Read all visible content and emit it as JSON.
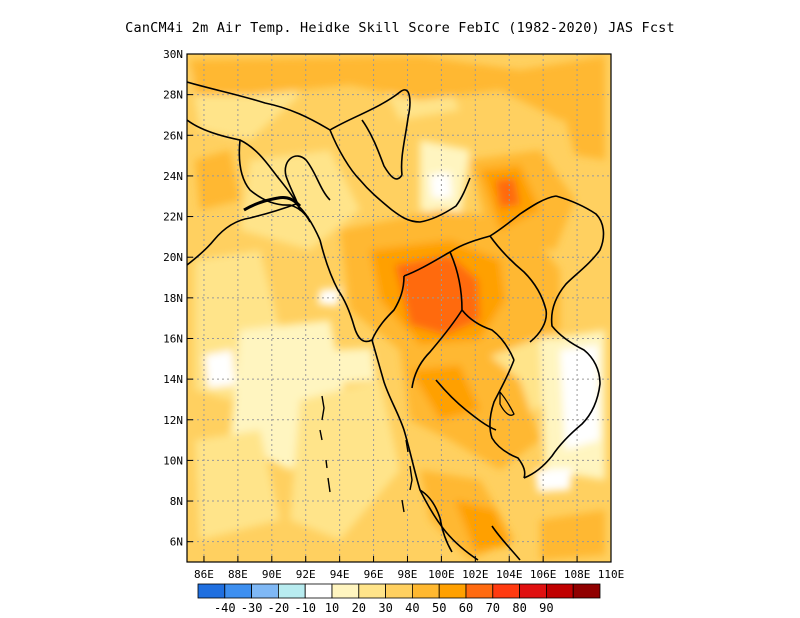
{
  "title": "CanCM4i  2m Air Temp. Heidke Skill Score FebIC (1982-2020) JAS Fcst",
  "map": {
    "lon_range": [
      85,
      110
    ],
    "lat_range": [
      5,
      30
    ],
    "grid": true,
    "x_ticks": [
      "86E",
      "88E",
      "90E",
      "92E",
      "94E",
      "96E",
      "98E",
      "100E",
      "102E",
      "104E",
      "106E",
      "108E",
      "110E"
    ],
    "y_ticks": [
      "6N",
      "8N",
      "10N",
      "12N",
      "14N",
      "16N",
      "18N",
      "20N",
      "22N",
      "24N",
      "26N",
      "28N",
      "30N"
    ]
  },
  "colorbar": {
    "colors": [
      "#1f6fe0",
      "#3d8ff0",
      "#7fb8f5",
      "#b8ecf0",
      "#ffffff",
      "#fff5c0",
      "#ffe48a",
      "#ffd060",
      "#ffb830",
      "#ffa000",
      "#ff6a10",
      "#ff3a10",
      "#e01010",
      "#c00000",
      "#900000"
    ],
    "labels": [
      "-40",
      "-30",
      "-20",
      "-10",
      "10",
      "20",
      "30",
      "40",
      "50",
      "60",
      "70",
      "80",
      "90"
    ]
  }
}
